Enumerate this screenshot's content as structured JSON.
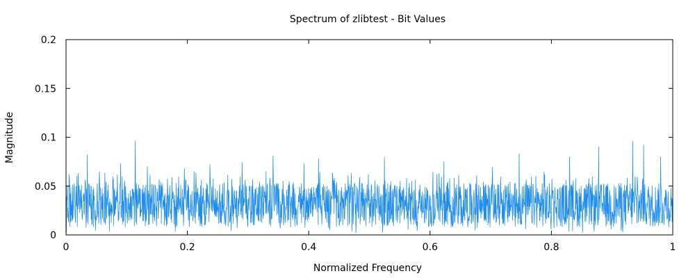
{
  "chart_data": {
    "type": "line",
    "title": "Spectrum of zlibtest - Bit Values",
    "xlabel": "Normalized Frequency",
    "ylabel": "Magnitude",
    "xlim": [
      0,
      1
    ],
    "ylim": [
      0,
      0.2
    ],
    "x_ticks": [
      0,
      0.2,
      0.4,
      0.6,
      0.8,
      1
    ],
    "y_ticks": [
      0,
      0.05,
      0.1,
      0.15,
      0.2
    ],
    "x_tick_labels": [
      "0",
      "0.2",
      "0.4",
      "0.6",
      "0.8",
      "1"
    ],
    "y_tick_labels": [
      "0",
      "0.05",
      "0.1",
      "0.15",
      "0.2"
    ],
    "grid": false,
    "series": [
      {
        "color": "#1e8cf0",
        "sampling": "approximately 2000 evenly spaced frequencies from 0 to 1; magnitudes fluctuate roughly between 0 and 0.06, with occasional peaks up to about 0.096",
        "peaks": [
          {
            "x": 0.035,
            "y": 0.082
          },
          {
            "x": 0.09,
            "y": 0.073
          },
          {
            "x": 0.114,
            "y": 0.096
          },
          {
            "x": 0.134,
            "y": 0.07
          },
          {
            "x": 0.195,
            "y": 0.068
          },
          {
            "x": 0.237,
            "y": 0.072
          },
          {
            "x": 0.29,
            "y": 0.074
          },
          {
            "x": 0.341,
            "y": 0.081
          },
          {
            "x": 0.392,
            "y": 0.073
          },
          {
            "x": 0.416,
            "y": 0.078
          },
          {
            "x": 0.525,
            "y": 0.079
          },
          {
            "x": 0.623,
            "y": 0.075
          },
          {
            "x": 0.703,
            "y": 0.069
          },
          {
            "x": 0.747,
            "y": 0.083
          },
          {
            "x": 0.83,
            "y": 0.08
          },
          {
            "x": 0.878,
            "y": 0.09
          },
          {
            "x": 0.934,
            "y": 0.096
          },
          {
            "x": 0.952,
            "y": 0.092
          },
          {
            "x": 0.98,
            "y": 0.08
          }
        ]
      }
    ]
  }
}
